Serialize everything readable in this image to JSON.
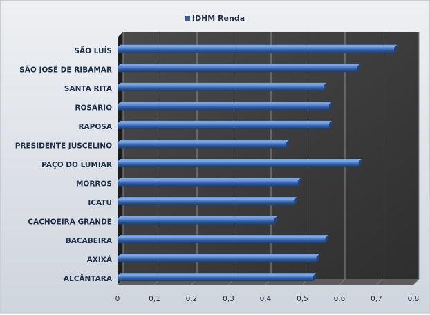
{
  "chart_data": {
    "type": "bar",
    "orientation": "horizontal",
    "title": "",
    "legend": {
      "label": "IDHM Renda",
      "placement": "top"
    },
    "series": [
      {
        "name": "IDHM Renda",
        "color": "#2f5fa8",
        "values": [
          0.748,
          0.648,
          0.557,
          0.572,
          0.572,
          0.456,
          0.652,
          0.488,
          0.477,
          0.424,
          0.562,
          0.538,
          0.529
        ]
      }
    ],
    "categories": [
      "SÃO LUÍS",
      "SÃO JOSÉ DE RIBAMAR",
      "SANTA RITA",
      "ROSÁRIO",
      "RAPOSA",
      "PRESIDENTE JUSCELINO",
      "PAÇO DO LUMIAR",
      "MORROS",
      "ICATU",
      "CACHOEIRA GRANDE",
      "BACABEIRA",
      "AXIXÁ",
      "ALCÂNTARA"
    ],
    "x_ticks": [
      "0",
      "0,1",
      "0,2",
      "0,3",
      "0,4",
      "0,5",
      "0,6",
      "0,7",
      "0,8"
    ],
    "xlim": [
      0,
      0.8
    ],
    "grid": true,
    "style": "3d-dark-background"
  }
}
